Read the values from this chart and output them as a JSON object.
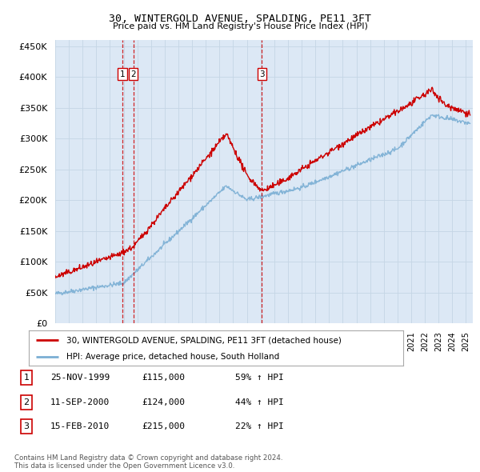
{
  "title": "30, WINTERGOLD AVENUE, SPALDING, PE11 3FT",
  "subtitle": "Price paid vs. HM Land Registry's House Price Index (HPI)",
  "ylim": [
    0,
    460000
  ],
  "yticks": [
    0,
    50000,
    100000,
    150000,
    200000,
    250000,
    300000,
    350000,
    400000,
    450000
  ],
  "xlim_start": 1995.0,
  "xlim_end": 2025.5,
  "background_color": "#ffffff",
  "plot_bg_color": "#dce8f5",
  "grid_color": "#c8d8e8",
  "red_line_color": "#cc0000",
  "blue_line_color": "#7bafd4",
  "dashed_line_color": "#cc0000",
  "sale_events": [
    {
      "label": "1",
      "date_year": 1999.9
    },
    {
      "label": "2",
      "date_year": 2000.7
    },
    {
      "label": "3",
      "date_year": 2010.1
    }
  ],
  "legend_red_label": "30, WINTERGOLD AVENUE, SPALDING, PE11 3FT (detached house)",
  "legend_blue_label": "HPI: Average price, detached house, South Holland",
  "footnote": "Contains HM Land Registry data © Crown copyright and database right 2024.\nThis data is licensed under the Open Government Licence v3.0.",
  "table_rows": [
    [
      "1",
      "25-NOV-1999",
      "£115,000",
      "59% ↑ HPI"
    ],
    [
      "2",
      "11-SEP-2000",
      "£124,000",
      "44% ↑ HPI"
    ],
    [
      "3",
      "15-FEB-2010",
      "£215,000",
      "22% ↑ HPI"
    ]
  ]
}
